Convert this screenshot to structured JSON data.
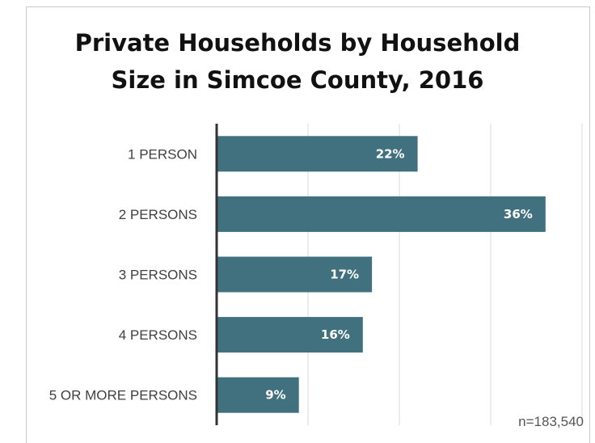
{
  "chart_data": {
    "type": "bar",
    "orientation": "horizontal",
    "title_lines": [
      "Private Households by Household",
      "Size in Simcoe County, 2016"
    ],
    "categories": [
      "1 PERSON",
      "2 PERSONS",
      "3 PERSONS",
      "4 PERSONS",
      "5 OR MORE PERSONS"
    ],
    "values": [
      22,
      36,
      17,
      16,
      9
    ],
    "value_labels": [
      "22%",
      "36%",
      "17%",
      "16%",
      "9%"
    ],
    "xlim": [
      0,
      40
    ],
    "grid": true,
    "bar_color": "#41707F",
    "note": "n=183,540"
  }
}
